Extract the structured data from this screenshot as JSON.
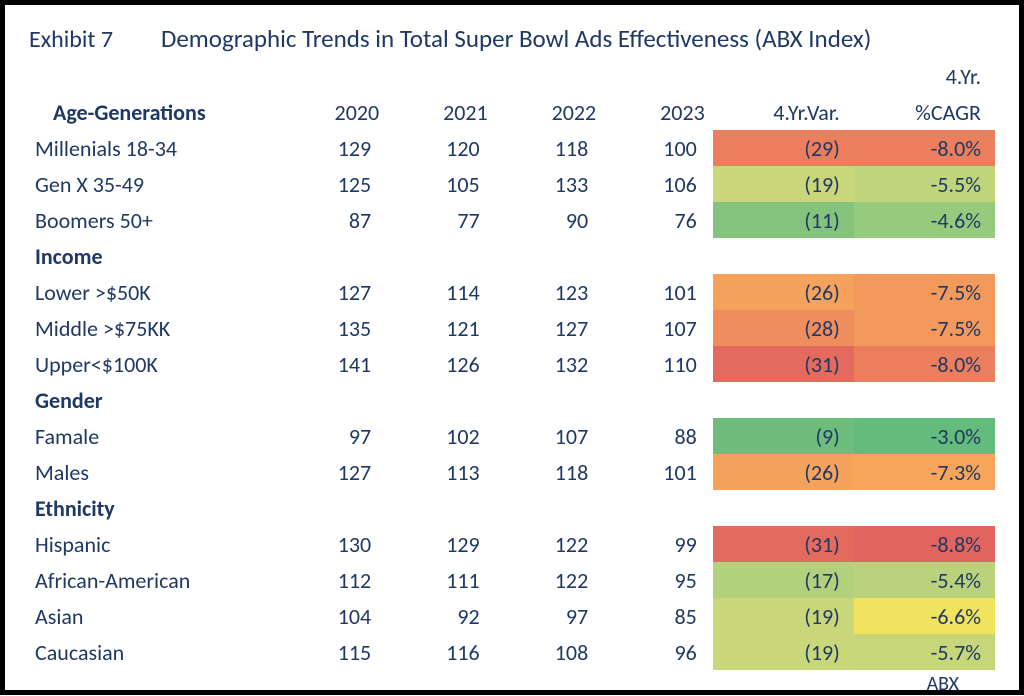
{
  "exhibit_label": "Exhibit 7",
  "title": "Demographic Trends in Total Super Bowl Ads Effectiveness (ABX Index)",
  "footer": "ABX",
  "columns": {
    "years": [
      "2020",
      "2021",
      "2022",
      "2023"
    ],
    "var_label": "4.Yr.Var.",
    "cagr_top": "4.Yr.",
    "cagr_label": "%CAGR"
  },
  "heat_colors": {
    "var": {
      "-31": "#e46a5e",
      "-29": "#ea7e5d",
      "-28": "#ef8d5c",
      "-26": "#f5a35c",
      "-19": "#c9d67a",
      "-17": "#b3d17c",
      "-11": "#84c37c",
      "-9": "#6fbd7c"
    },
    "cagr": {
      "-8.8": "#e2645e",
      "-8.0": "#ea7e5d",
      "-7.5": "#f3995b",
      "-7.3": "#f6a55b",
      "-6.6": "#f1e35e",
      "-5.7": "#c8d67a",
      "-5.5": "#bfd47b",
      "-5.4": "#bad27b",
      "-4.6": "#96ca7c",
      "-3.0": "#63bb7c"
    }
  },
  "groups": [
    {
      "name": "Age-Generations",
      "rows": [
        {
          "label": "Millenials 18-34",
          "y2020": "129",
          "y2021": "120",
          "y2022": "118",
          "y2023": "100",
          "var": "(29)",
          "var_key": "-29",
          "cagr": "-8.0%",
          "cagr_key": "-8.0"
        },
        {
          "label": "Gen X 35-49",
          "y2020": "125",
          "y2021": "105",
          "y2022": "133",
          "y2023": "106",
          "var": "(19)",
          "var_key": "-19",
          "cagr": "-5.5%",
          "cagr_key": "-5.5"
        },
        {
          "label": "Boomers 50+",
          "y2020": "87",
          "y2021": "77",
          "y2022": "90",
          "y2023": "76",
          "var": "(11)",
          "var_key": "-11",
          "cagr": "-4.6%",
          "cagr_key": "-4.6"
        }
      ]
    },
    {
      "name": "Income",
      "rows": [
        {
          "label": "Lower >$50K",
          "y2020": "127",
          "y2021": "114",
          "y2022": "123",
          "y2023": "101",
          "var": "(26)",
          "var_key": "-26",
          "cagr": "-7.5%",
          "cagr_key": "-7.5"
        },
        {
          "label": "Middle >$75KK",
          "y2020": "135",
          "y2021": "121",
          "y2022": "127",
          "y2023": "107",
          "var": "(28)",
          "var_key": "-28",
          "cagr": "-7.5%",
          "cagr_key": "-7.5"
        },
        {
          "label": "Upper<$100K",
          "y2020": "141",
          "y2021": "126",
          "y2022": "132",
          "y2023": "110",
          "var": "(31)",
          "var_key": "-31",
          "cagr": "-8.0%",
          "cagr_key": "-8.0"
        }
      ]
    },
    {
      "name": "Gender",
      "rows": [
        {
          "label": "Famale",
          "y2020": "97",
          "y2021": "102",
          "y2022": "107",
          "y2023": "88",
          "var": "(9)",
          "var_key": "-9",
          "cagr": "-3.0%",
          "cagr_key": "-3.0"
        },
        {
          "label": "Males",
          "y2020": "127",
          "y2021": "113",
          "y2022": "118",
          "y2023": "101",
          "var": "(26)",
          "var_key": "-26",
          "cagr": "-7.3%",
          "cagr_key": "-7.3"
        }
      ]
    },
    {
      "name": "Ethnicity",
      "rows": [
        {
          "label": "Hispanic",
          "y2020": "130",
          "y2021": "129",
          "y2022": "122",
          "y2023": "99",
          "var": "(31)",
          "var_key": "-31",
          "cagr": "-8.8%",
          "cagr_key": "-8.8"
        },
        {
          "label": "African-American",
          "y2020": "112",
          "y2021": "111",
          "y2022": "122",
          "y2023": "95",
          "var": "(17)",
          "var_key": "-17",
          "cagr": "-5.4%",
          "cagr_key": "-5.4"
        },
        {
          "label": "Asian",
          "y2020": "104",
          "y2021": "92",
          "y2022": "97",
          "y2023": "85",
          "var": "(19)",
          "var_key": "-19",
          "cagr": "-6.6%",
          "cagr_key": "-6.6"
        },
        {
          "label": "Caucasian",
          "y2020": "115",
          "y2021": "116",
          "y2022": "108",
          "y2023": "96",
          "var": "(19)",
          "var_key": "-19",
          "cagr": "-5.7%",
          "cagr_key": "-5.7"
        }
      ]
    }
  ]
}
